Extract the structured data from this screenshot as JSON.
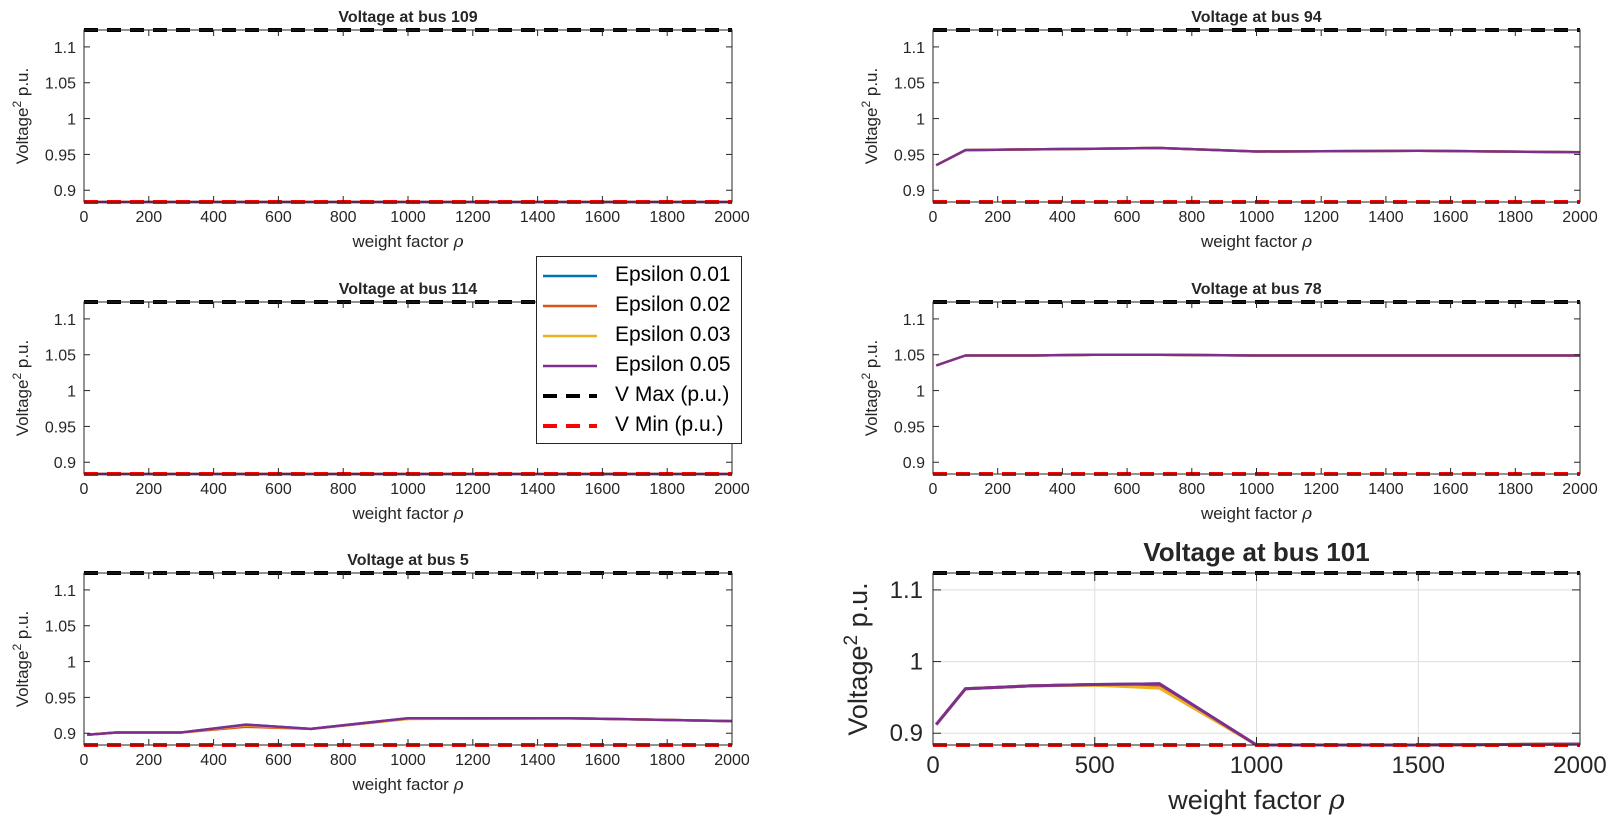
{
  "colors": {
    "eps001": "#0072BD",
    "eps002": "#D95319",
    "eps003": "#EDB120",
    "eps005": "#7E2F8E",
    "vmax": "#000000",
    "vmin": "#FF0000"
  },
  "legend": [
    {
      "label": "Epsilon 0.01",
      "color": "#0072BD",
      "style": "solid"
    },
    {
      "label": "Epsilon 0.02",
      "color": "#D95319",
      "style": "solid"
    },
    {
      "label": "Epsilon 0.03",
      "color": "#EDB120",
      "style": "solid"
    },
    {
      "label": "Epsilon 0.05",
      "color": "#7E2F8E",
      "style": "solid"
    },
    {
      "label": "V Max (p.u.)",
      "color": "#000000",
      "style": "dashed"
    },
    {
      "label": "V Min (p.u.)",
      "color": "#FF0000",
      "style": "dashed"
    }
  ],
  "legend_placement": "center, between the left and right columns",
  "chart_data": [
    {
      "type": "line",
      "title": "Voltage at bus 109",
      "xlabel": "weight factor ρ",
      "ylabel": "Voltage² p.u.",
      "xlim": [
        0,
        2000
      ],
      "ylim": [
        0.8836,
        1.1236
      ],
      "xticks": [
        "0",
        "200",
        "400",
        "600",
        "800",
        "1000",
        "1200",
        "1400",
        "1600",
        "1800",
        "2000"
      ],
      "yticks": [
        "0.9",
        "0.95",
        "1",
        "1.05",
        "1.1"
      ],
      "grid": false,
      "x": [
        10,
        100,
        300,
        500,
        700,
        1000,
        1500,
        2000
      ],
      "series": [
        {
          "name": "Epsilon 0.01",
          "values": [
            0.8836,
            0.8836,
            0.8836,
            0.8836,
            0.8836,
            0.8836,
            0.8836,
            0.8836
          ]
        },
        {
          "name": "Epsilon 0.02",
          "values": [
            0.8836,
            0.8836,
            0.8836,
            0.8836,
            0.8836,
            0.8836,
            0.8836,
            0.8836
          ]
        },
        {
          "name": "Epsilon 0.03",
          "values": [
            0.8836,
            0.8836,
            0.8836,
            0.8836,
            0.8836,
            0.8836,
            0.8836,
            0.8836
          ]
        },
        {
          "name": "Epsilon 0.05",
          "values": [
            0.8836,
            0.8836,
            0.8836,
            0.8836,
            0.8836,
            0.8836,
            0.8836,
            0.8836
          ]
        }
      ],
      "vmax": 1.1236,
      "vmin": 0.8836
    },
    {
      "type": "line",
      "title": "Voltage at bus 94",
      "xlabel": "weight factor ρ",
      "ylabel": "Voltage² p.u.",
      "xlim": [
        0,
        2000
      ],
      "ylim": [
        0.8836,
        1.1236
      ],
      "xticks": [
        "0",
        "200",
        "400",
        "600",
        "800",
        "1000",
        "1200",
        "1400",
        "1600",
        "1800",
        "2000"
      ],
      "yticks": [
        "0.9",
        "0.95",
        "1",
        "1.05",
        "1.1"
      ],
      "grid": false,
      "x": [
        10,
        100,
        300,
        500,
        700,
        1000,
        1500,
        2000
      ],
      "series": [
        {
          "name": "Epsilon 0.01",
          "values": [
            0.935,
            0.956,
            0.957,
            0.958,
            0.959,
            0.954,
            0.955,
            0.953
          ]
        },
        {
          "name": "Epsilon 0.02",
          "values": [
            0.935,
            0.956,
            0.957,
            0.958,
            0.959,
            0.954,
            0.955,
            0.953
          ]
        },
        {
          "name": "Epsilon 0.03",
          "values": [
            0.935,
            0.956,
            0.957,
            0.958,
            0.959,
            0.954,
            0.955,
            0.953
          ]
        },
        {
          "name": "Epsilon 0.05",
          "values": [
            0.935,
            0.956,
            0.957,
            0.958,
            0.959,
            0.954,
            0.955,
            0.953
          ]
        }
      ],
      "vmax": 1.1236,
      "vmin": 0.8836
    },
    {
      "type": "line",
      "title": "Voltage at bus 114",
      "xlabel": "weight factor ρ",
      "ylabel": "Voltage² p.u.",
      "xlim": [
        0,
        2000
      ],
      "ylim": [
        0.8836,
        1.1236
      ],
      "xticks": [
        "0",
        "200",
        "400",
        "600",
        "800",
        "1000",
        "1200",
        "1400",
        "1600",
        "1800",
        "2000"
      ],
      "yticks": [
        "0.9",
        "0.95",
        "1",
        "1.05",
        "1.1"
      ],
      "grid": false,
      "x": [
        10,
        100,
        300,
        500,
        700,
        1000,
        1500,
        2000
      ],
      "series": [
        {
          "name": "Epsilon 0.01",
          "values": [
            0.8836,
            0.8836,
            0.8836,
            0.8836,
            0.8836,
            0.8836,
            0.8836,
            0.8836
          ]
        },
        {
          "name": "Epsilon 0.02",
          "values": [
            0.8836,
            0.8836,
            0.8836,
            0.8836,
            0.8836,
            0.8836,
            0.8836,
            0.8836
          ]
        },
        {
          "name": "Epsilon 0.03",
          "values": [
            0.8836,
            0.8836,
            0.8836,
            0.8836,
            0.8836,
            0.8836,
            0.8836,
            0.8836
          ]
        },
        {
          "name": "Epsilon 0.05",
          "values": [
            0.8836,
            0.8836,
            0.8836,
            0.8836,
            0.8836,
            0.8836,
            0.8836,
            0.8836
          ]
        }
      ],
      "vmax": 1.1236,
      "vmin": 0.8836
    },
    {
      "type": "line",
      "title": "Voltage at bus 78",
      "xlabel": "weight factor ρ",
      "ylabel": "Voltage² p.u.",
      "xlim": [
        0,
        2000
      ],
      "ylim": [
        0.8836,
        1.1236
      ],
      "xticks": [
        "0",
        "200",
        "400",
        "600",
        "800",
        "1000",
        "1200",
        "1400",
        "1600",
        "1800",
        "2000"
      ],
      "yticks": [
        "0.9",
        "0.95",
        "1",
        "1.05",
        "1.1"
      ],
      "grid": false,
      "x": [
        10,
        100,
        300,
        500,
        700,
        1000,
        1500,
        2000
      ],
      "series": [
        {
          "name": "Epsilon 0.01",
          "values": [
            1.035,
            1.049,
            1.049,
            1.05,
            1.05,
            1.049,
            1.049,
            1.049
          ]
        },
        {
          "name": "Epsilon 0.02",
          "values": [
            1.035,
            1.049,
            1.049,
            1.05,
            1.05,
            1.049,
            1.049,
            1.049
          ]
        },
        {
          "name": "Epsilon 0.03",
          "values": [
            1.035,
            1.049,
            1.049,
            1.05,
            1.05,
            1.049,
            1.049,
            1.049
          ]
        },
        {
          "name": "Epsilon 0.05",
          "values": [
            1.035,
            1.049,
            1.049,
            1.05,
            1.05,
            1.049,
            1.049,
            1.049
          ]
        }
      ],
      "vmax": 1.1236,
      "vmin": 0.8836
    },
    {
      "type": "line",
      "title": "Voltage at bus 5",
      "xlabel": "weight factor ρ",
      "ylabel": "Voltage² p.u.",
      "xlim": [
        0,
        2000
      ],
      "ylim": [
        0.8836,
        1.1236
      ],
      "xticks": [
        "0",
        "200",
        "400",
        "600",
        "800",
        "1000",
        "1200",
        "1400",
        "1600",
        "1800",
        "2000"
      ],
      "yticks": [
        "0.9",
        "0.95",
        "1",
        "1.05",
        "1.1"
      ],
      "grid": false,
      "x": [
        10,
        100,
        300,
        500,
        700,
        1000,
        1500,
        2000
      ],
      "series": [
        {
          "name": "Epsilon 0.01",
          "values": [
            0.898,
            0.901,
            0.901,
            0.912,
            0.906,
            0.921,
            0.921,
            0.917
          ]
        },
        {
          "name": "Epsilon 0.02",
          "values": [
            0.898,
            0.901,
            0.901,
            0.909,
            0.906,
            0.92,
            0.921,
            0.917
          ]
        },
        {
          "name": "Epsilon 0.03",
          "values": [
            0.898,
            0.901,
            0.901,
            0.911,
            0.906,
            0.92,
            0.921,
            0.917
          ]
        },
        {
          "name": "Epsilon 0.05",
          "values": [
            0.898,
            0.901,
            0.901,
            0.912,
            0.906,
            0.921,
            0.921,
            0.917
          ]
        }
      ],
      "vmax": 1.1236,
      "vmin": 0.8836
    },
    {
      "type": "line",
      "title": "Voltage at bus 101",
      "xlabel": "weight factor ρ",
      "ylabel": "Voltage² p.u.",
      "xlim": [
        0,
        2000
      ],
      "ylim": [
        0.8836,
        1.1236
      ],
      "xticks": [
        "0",
        "500",
        "1000",
        "1500",
        "2000"
      ],
      "yticks": [
        "0.9",
        "1",
        "1.1"
      ],
      "grid": true,
      "x": [
        10,
        100,
        300,
        500,
        700,
        1000,
        1500,
        2000
      ],
      "series": [
        {
          "name": "Epsilon 0.01",
          "values": [
            0.912,
            0.962,
            0.966,
            0.968,
            0.969,
            0.8836,
            0.8836,
            0.885
          ]
        },
        {
          "name": "Epsilon 0.02",
          "values": [
            0.912,
            0.962,
            0.966,
            0.968,
            0.967,
            0.8836,
            0.8836,
            0.885
          ]
        },
        {
          "name": "Epsilon 0.03",
          "values": [
            0.912,
            0.962,
            0.966,
            0.967,
            0.963,
            0.8836,
            0.8836,
            0.885
          ]
        },
        {
          "name": "Epsilon 0.05",
          "values": [
            0.912,
            0.962,
            0.966,
            0.968,
            0.969,
            0.8836,
            0.8836,
            0.885
          ]
        }
      ],
      "vmax": 1.1236,
      "vmin": 0.8836
    }
  ]
}
